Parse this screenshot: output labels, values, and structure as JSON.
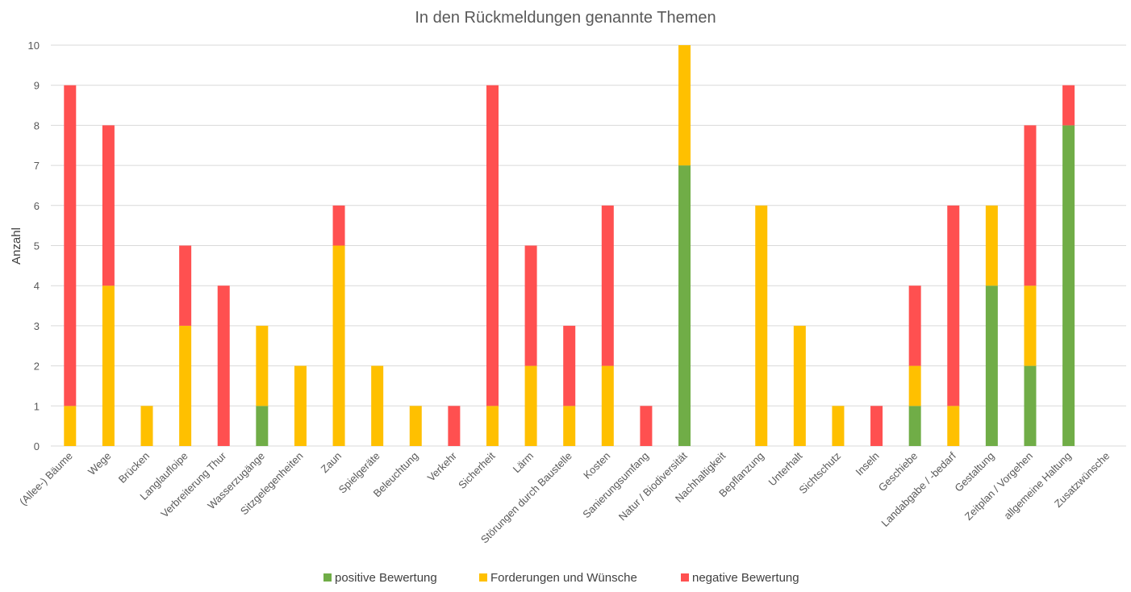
{
  "chart_data": {
    "type": "bar",
    "stacked": true,
    "title": "In den Rückmeldungen genannte Themen",
    "xlabel": "",
    "ylabel": "Anzahl",
    "ylim": [
      0,
      10
    ],
    "yticks": [
      0,
      1,
      2,
      3,
      4,
      5,
      6,
      7,
      8,
      9,
      10
    ],
    "grid": true,
    "legend_position": "bottom",
    "categories": [
      "(Allee-) Bäume",
      "Wege",
      "Brücken",
      "Langlaufloipe",
      "Verbreiterung Thur",
      "Wasserzugänge",
      "Sitzgelegenheiten",
      "Zaun",
      "Spielgeräte",
      "Beleuchtung",
      "Verkehr",
      "Sicherheit",
      "Lärm",
      "Störungen durch Baustelle",
      "Kosten",
      "Sanierungsumfang",
      "Natur / Biodiversität",
      "Nachhaltigkeit",
      "Bepflanzung",
      "Unterhalt",
      "Sichtschutz",
      "Inseln",
      "Geschiebe",
      "Landabgabe / -bedarf",
      "Gestaltung",
      "Zeitplan / Vorgehen",
      "allgemeine Haltung",
      "Zusatzwünsche"
    ],
    "series": [
      {
        "name": "positive Bewertung",
        "color": "#70AD47",
        "values": [
          0,
          0,
          0,
          0,
          0,
          1,
          0,
          0,
          0,
          0,
          0,
          0,
          0,
          0,
          0,
          0,
          7,
          0,
          0,
          0,
          0,
          0,
          1,
          0,
          4,
          2,
          8,
          0
        ]
      },
      {
        "name": "Forderungen und Wünsche",
        "color": "#FFC000",
        "values": [
          1,
          4,
          1,
          3,
          0,
          2,
          2,
          5,
          2,
          1,
          0,
          1,
          2,
          1,
          2,
          0,
          3,
          0,
          6,
          3,
          1,
          0,
          1,
          1,
          2,
          2,
          0,
          0
        ]
      },
      {
        "name": "negative Bewertung",
        "color": "#FF5050",
        "values": [
          8,
          4,
          0,
          2,
          4,
          0,
          0,
          1,
          0,
          0,
          1,
          8,
          3,
          2,
          4,
          1,
          0,
          0,
          0,
          0,
          0,
          1,
          2,
          5,
          0,
          4,
          1,
          0
        ]
      }
    ]
  }
}
